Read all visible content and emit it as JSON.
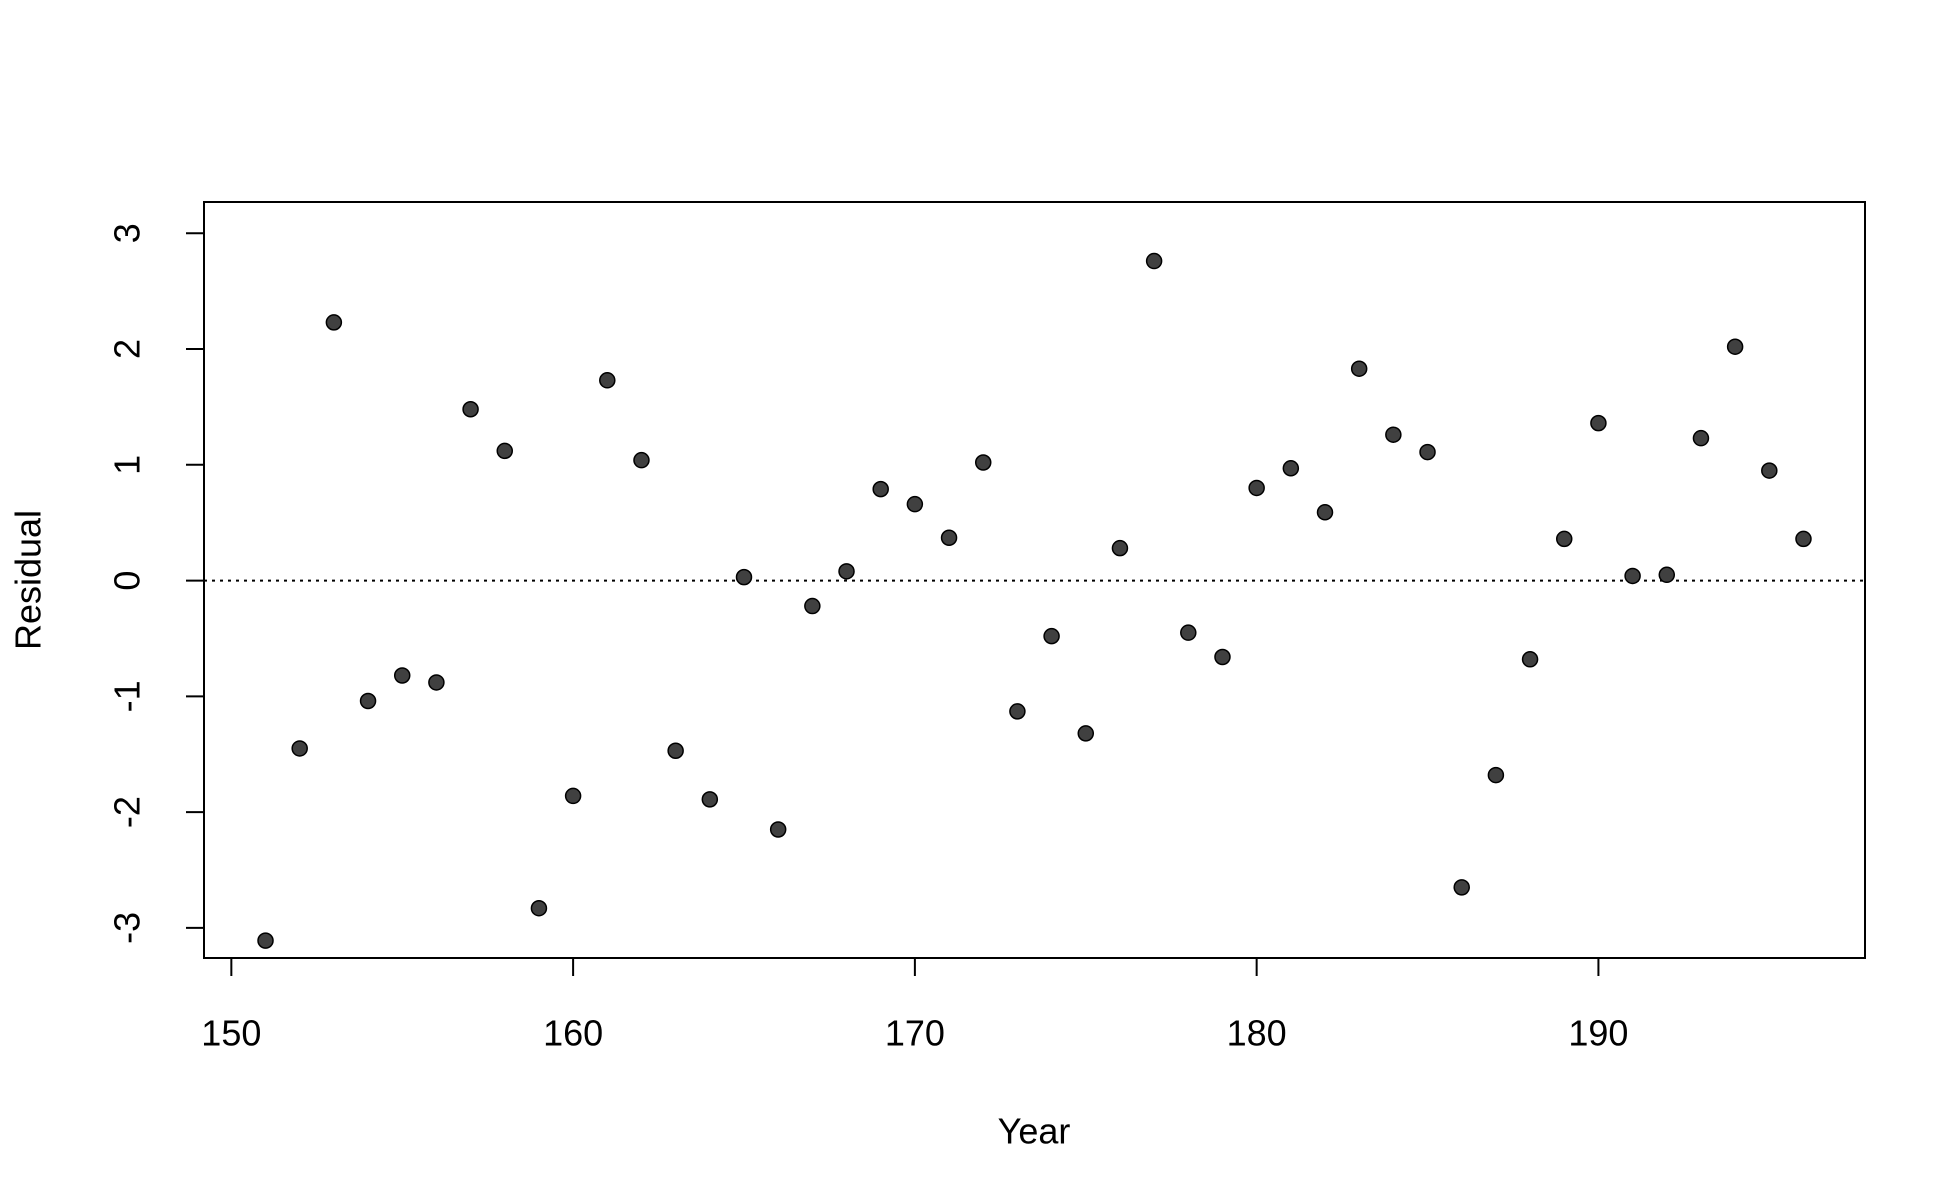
{
  "chart_data": {
    "type": "scatter",
    "x_label": "Year",
    "y_label": "Residual",
    "x": [
      151,
      152,
      153,
      154,
      155,
      156,
      157,
      158,
      159,
      160,
      161,
      162,
      163,
      164,
      165,
      166,
      167,
      168,
      169,
      170,
      171,
      172,
      173,
      174,
      175,
      176,
      177,
      178,
      179,
      180,
      181,
      182,
      183,
      184,
      185,
      186,
      187,
      188,
      189,
      190,
      191,
      192,
      193,
      194,
      195,
      196
    ],
    "values": [
      -3.11,
      -1.45,
      2.23,
      -1.04,
      -0.82,
      -0.88,
      1.48,
      1.12,
      -2.83,
      -1.86,
      1.73,
      1.04,
      -1.47,
      -1.89,
      0.03,
      -2.15,
      -0.22,
      0.08,
      0.79,
      0.66,
      0.37,
      1.02,
      -1.13,
      -0.48,
      -1.32,
      0.28,
      2.76,
      -0.45,
      -0.66,
      0.8,
      0.97,
      0.59,
      1.83,
      1.26,
      1.11,
      -2.65,
      -1.68,
      -0.68,
      0.36,
      1.36,
      0.04,
      0.05,
      1.23,
      2.02,
      0.95,
      0.36
    ],
    "color": "#404040",
    "reference_line": 0,
    "xlim": [
      149.2,
      197.8
    ],
    "ylim": [
      -3.26,
      3.27
    ],
    "xticks": [
      150,
      160,
      170,
      180,
      190
    ],
    "yticks": [
      -3,
      -2,
      -1,
      0,
      1,
      2,
      3
    ]
  }
}
